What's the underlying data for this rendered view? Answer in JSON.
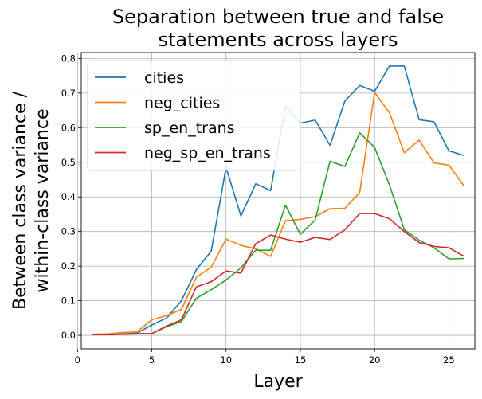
{
  "chart_data": {
    "type": "line",
    "title_lines": [
      "Separation between true and false",
      "statements across layers"
    ],
    "xlabel": "Layer",
    "ylabel_lines": [
      "Between class variance /",
      "within-class variance"
    ],
    "xlim": [
      0.25,
      26.75
    ],
    "ylim": [
      -0.039,
      0.817
    ],
    "xticks": [
      0,
      5,
      10,
      15,
      20,
      25
    ],
    "xtick_labels": [
      "0",
      "5",
      "10",
      "15",
      "20",
      "25"
    ],
    "yticks": [
      0.0,
      0.1,
      0.2,
      0.3,
      0.4,
      0.5,
      0.6,
      0.7,
      0.8
    ],
    "ytick_labels": [
      "0.0",
      "0.1",
      "0.2",
      "0.3",
      "0.4",
      "0.5",
      "0.6",
      "0.7",
      "0.8"
    ],
    "grid": true,
    "legend_position": "upper-left",
    "x": [
      1,
      2,
      3,
      4,
      5,
      6,
      7,
      8,
      9,
      10,
      11,
      12,
      13,
      14,
      15,
      16,
      17,
      18,
      19,
      20,
      21,
      22,
      23,
      24,
      25,
      26
    ],
    "series": [
      {
        "name": "cities",
        "color": "#1f77b4",
        "values": [
          0.002,
          0.002,
          0.004,
          0.006,
          0.03,
          0.05,
          0.1,
          0.19,
          0.243,
          0.485,
          0.345,
          0.438,
          0.418,
          0.663,
          0.613,
          0.622,
          0.549,
          0.677,
          0.722,
          0.705,
          0.778,
          0.778,
          0.623,
          0.617,
          0.533,
          0.52
        ]
      },
      {
        "name": "neg_cities",
        "color": "#ff7f0e",
        "values": [
          0.003,
          0.004,
          0.008,
          0.01,
          0.045,
          0.057,
          0.075,
          0.168,
          0.197,
          0.278,
          0.26,
          0.25,
          0.228,
          0.331,
          0.335,
          0.343,
          0.366,
          0.367,
          0.413,
          0.702,
          0.643,
          0.528,
          0.564,
          0.498,
          0.492,
          0.433
        ]
      },
      {
        "name": "sp_en_trans",
        "color": "#2ca02c",
        "values": [
          0.002,
          0.002,
          0.003,
          0.004,
          0.005,
          0.025,
          0.04,
          0.107,
          0.132,
          0.16,
          0.195,
          0.246,
          0.246,
          0.376,
          0.292,
          0.333,
          0.503,
          0.488,
          0.585,
          0.543,
          0.435,
          0.305,
          0.275,
          0.253,
          0.221,
          0.222
        ]
      },
      {
        "name": "neg_sp_en_trans",
        "color": "#d62728",
        "values": [
          0.002,
          0.002,
          0.003,
          0.005,
          0.005,
          0.027,
          0.045,
          0.14,
          0.155,
          0.186,
          0.18,
          0.265,
          0.29,
          0.278,
          0.269,
          0.283,
          0.277,
          0.305,
          0.352,
          0.352,
          0.337,
          0.3,
          0.268,
          0.257,
          0.253,
          0.229
        ]
      }
    ]
  }
}
